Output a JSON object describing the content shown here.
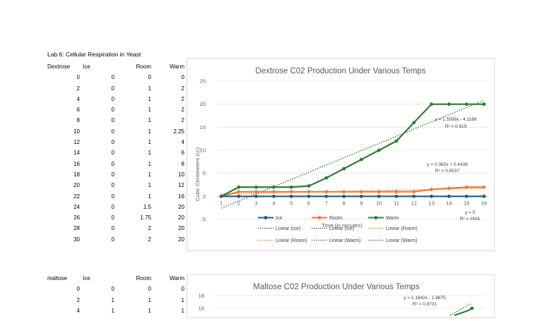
{
  "sheet": {
    "title": "Lab 6: Cellular Respiration in Yeast",
    "dextrose_headers": [
      "Dextrose",
      "Ice",
      "Room",
      "Warm"
    ],
    "dextrose_rows": [
      [
        "0",
        "0",
        "0",
        "0"
      ],
      [
        "2",
        "0",
        "1",
        "2"
      ],
      [
        "4",
        "0",
        "1",
        "2"
      ],
      [
        "6",
        "0",
        "1",
        "2"
      ],
      [
        "8",
        "0",
        "1",
        "2"
      ],
      [
        "10",
        "0",
        "1",
        "2.25"
      ],
      [
        "12",
        "0",
        "1",
        "4"
      ],
      [
        "14",
        "0",
        "1",
        "6"
      ],
      [
        "16",
        "0",
        "1",
        "8"
      ],
      [
        "18",
        "0",
        "1",
        "10"
      ],
      [
        "20",
        "0",
        "1",
        "12"
      ],
      [
        "22",
        "0",
        "1",
        "16"
      ],
      [
        "24",
        "0",
        "1.5",
        "20"
      ],
      [
        "26",
        "0",
        "1.75",
        "20"
      ],
      [
        "28",
        "0",
        "2",
        "20"
      ],
      [
        "30",
        "0",
        "2",
        "20"
      ]
    ],
    "maltose_headers": [
      "maltose",
      "Ice",
      "Room",
      "Warm"
    ],
    "maltose_rows": [
      [
        "0",
        "0",
        "0",
        "0"
      ],
      [
        "2",
        "1",
        "1",
        "1"
      ],
      [
        "4",
        "1",
        "1",
        "1"
      ]
    ]
  },
  "chart_data": [
    {
      "type": "line",
      "title": "Dextrose  C02 Production Under Various Temps",
      "xlabel": "Time (in minutes)",
      "ylabel": "Cubic Centimeters (cc)",
      "categories": [
        "1",
        "2",
        "3",
        "4",
        "5",
        "6",
        "7",
        "8",
        "9",
        "10",
        "11",
        "12",
        "13",
        "14",
        "15",
        "16"
      ],
      "ylim": [
        -5,
        25
      ],
      "yticks": [
        -5,
        0,
        5,
        10,
        15,
        20,
        25
      ],
      "grid": true,
      "legend_position": "bottom",
      "series": [
        {
          "name": "Ice",
          "color": "#1f5b8a",
          "values": [
            0,
            0,
            0,
            0,
            0,
            0,
            0,
            0,
            0,
            0,
            0,
            0,
            0,
            0,
            0,
            0
          ]
        },
        {
          "name": "Room",
          "color": "#ed7d31",
          "values": [
            0,
            1,
            1,
            1,
            1,
            1,
            1,
            1,
            1,
            1,
            1,
            1,
            1.5,
            1.75,
            2,
            2
          ]
        },
        {
          "name": "Warm",
          "color": "#2e7d32",
          "values": [
            0,
            2,
            2,
            2,
            2,
            2.25,
            4,
            6,
            8,
            10,
            12,
            16,
            20,
            20,
            20,
            20
          ]
        }
      ],
      "trendlines": [
        {
          "series": "Ice",
          "equation": "y = 0",
          "r2": "R² = #N/A",
          "slope": 0,
          "intercept": 0
        },
        {
          "series": "Room",
          "equation": "y = 0.082x + 0.4438",
          "r2": "R² = 0.6537",
          "slope": 0.082,
          "intercept": 0.4438
        },
        {
          "series": "Warm",
          "equation": "y = 1.5599x - 4.1188",
          "r2": "R² = 0.919",
          "slope": 1.5599,
          "intercept": -4.1188
        }
      ],
      "legend": [
        "Ice",
        "Room",
        "Warm",
        "Linear (Ice)",
        "Linear (Ice)",
        "Linear (Room)",
        "Linear (Room)",
        "Linear (Warm)",
        "Linear (Warm)"
      ]
    },
    {
      "type": "line",
      "title": "Maltose C02 Production Under Various Temps",
      "yticks": [
        16,
        18
      ],
      "trendlines": [
        {
          "series": "Warm",
          "equation": "y = 1.1842x - 1.9875",
          "r2": "R² = 0.9731"
        }
      ],
      "series": [
        {
          "name": "Warm",
          "color": "#2e7d32",
          "values": [
            16
          ]
        }
      ]
    }
  ]
}
